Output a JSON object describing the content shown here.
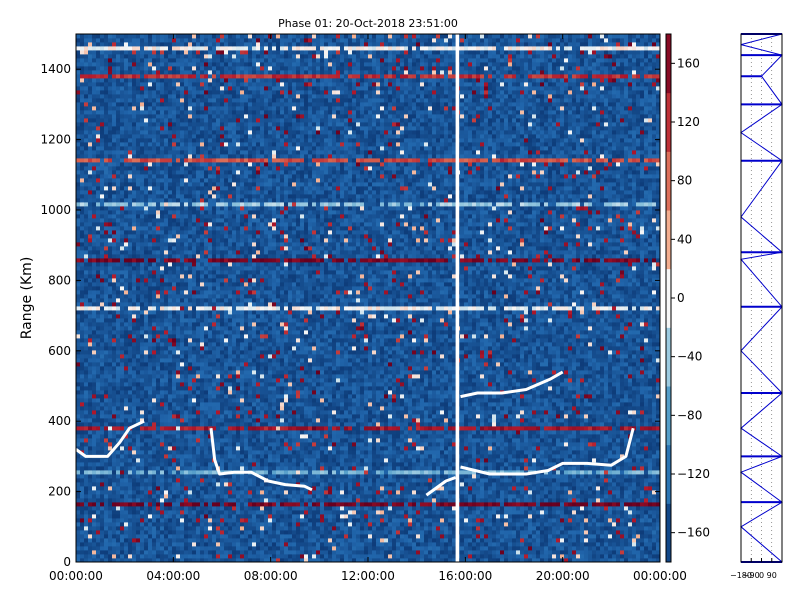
{
  "chart_data": [
    {
      "type": "heatmap",
      "title": "Phase 01: 20-Oct-2018 23:51:00",
      "xlabel": "",
      "ylabel": "Range (Km)",
      "xlim": [
        "00:00:00",
        "24:00:00"
      ],
      "ylim": [
        0,
        1500
      ],
      "x_ticks": [
        "00:00:00",
        "04:00:00",
        "08:00:00",
        "12:00:00",
        "16:00:00",
        "20:00:00",
        "00:00:00"
      ],
      "y_ticks": [
        0,
        200,
        400,
        600,
        800,
        1000,
        1200,
        1400
      ],
      "colorbar": {
        "range": [
          -180,
          180
        ],
        "ticks": [
          -160,
          -120,
          -80,
          -40,
          0,
          40,
          80,
          120,
          160
        ],
        "colormap": "RdBu_r",
        "colors": [
          "#08306b",
          "#2166ac",
          "#4393c3",
          "#92c5de",
          "#f7f7f7",
          "#f4a582",
          "#d6604d",
          "#b2182b",
          "#67001f"
        ]
      },
      "background_level": -150,
      "data_gap_hours": [
        15.6,
        15.75
      ],
      "range_bins_km": [
        {
          "range": 1465,
          "level": 0
        },
        {
          "range": 1380,
          "level": 120
        },
        {
          "range": 1140,
          "level": 100
        },
        {
          "range": 1020,
          "level": -40
        },
        {
          "range": 860,
          "level": 170
        },
        {
          "range": 725,
          "level": 0
        },
        {
          "range": 380,
          "level": 140
        },
        {
          "range": 255,
          "level": -60
        },
        {
          "range": 170,
          "level": 175
        }
      ],
      "bright_echo_traces": [
        {
          "points": [
            [
              0.0,
              320
            ],
            [
              0.4,
              300
            ],
            [
              1.3,
              300
            ],
            [
              1.8,
              340
            ],
            [
              2.2,
              380
            ],
            [
              2.8,
              400
            ]
          ]
        },
        {
          "points": [
            [
              5.55,
              380
            ],
            [
              5.7,
              290
            ],
            [
              5.9,
              250
            ],
            [
              6.5,
              255
            ],
            [
              7.2,
              255
            ],
            [
              7.9,
              230
            ],
            [
              8.6,
              220
            ],
            [
              9.4,
              215
            ],
            [
              9.7,
              205
            ]
          ]
        },
        {
          "points": [
            [
              14.4,
              190
            ],
            [
              14.8,
              210
            ],
            [
              15.2,
              230
            ],
            [
              15.6,
              240
            ]
          ]
        },
        {
          "points": [
            [
              15.8,
              270
            ],
            [
              17.0,
              250
            ],
            [
              18.5,
              250
            ],
            [
              19.4,
              260
            ],
            [
              20.0,
              280
            ],
            [
              21.0,
              280
            ],
            [
              22.0,
              275
            ],
            [
              22.6,
              300
            ],
            [
              22.9,
              380
            ]
          ]
        },
        {
          "points": [
            [
              15.8,
              470
            ],
            [
              16.5,
              480
            ],
            [
              17.5,
              480
            ],
            [
              18.5,
              490
            ],
            [
              19.5,
              520
            ],
            [
              20.0,
              540
            ]
          ]
        }
      ]
    },
    {
      "type": "line",
      "x_ticks": [
        -180,
        -90,
        0,
        90
      ],
      "xlim": [
        -180,
        180
      ],
      "ylim": [
        0,
        1500
      ],
      "color": "#0000cc",
      "x": [
        180,
        -180,
        180,
        0,
        180,
        -180,
        180,
        -180,
        180,
        -180,
        180,
        -180,
        180,
        -180,
        180,
        -180,
        180,
        -180,
        180
      ],
      "y": [
        1500,
        1470,
        1440,
        1380,
        1300,
        1220,
        1140,
        980,
        880,
        860,
        725,
        600,
        480,
        380,
        300,
        255,
        170,
        100,
        0
      ]
    }
  ]
}
